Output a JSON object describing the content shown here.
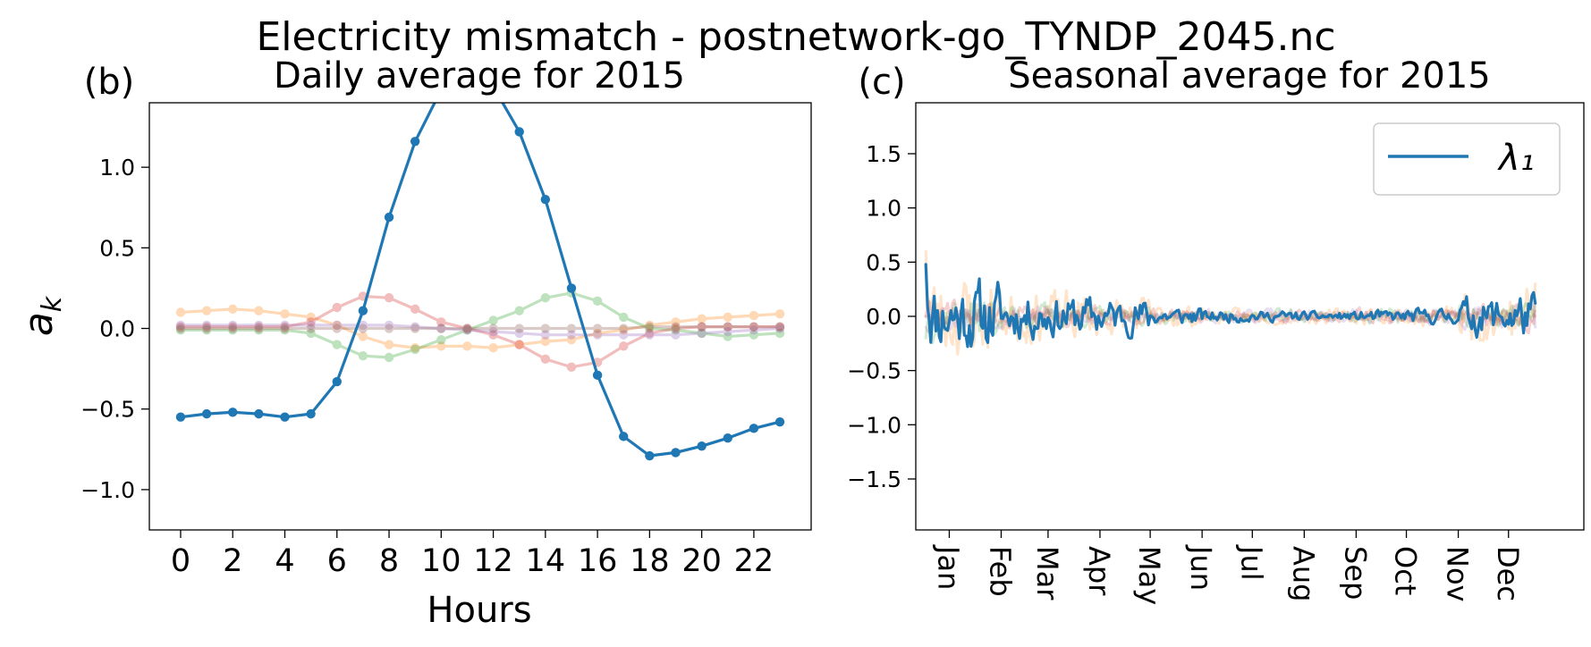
{
  "figure": {
    "suptitle": "Electricity mismatch - postnetwork-go_TYNDP_2045.nc"
  },
  "chart_data": [
    {
      "type": "line",
      "panel_label": "(b)",
      "title": "Daily average for 2015",
      "xlabel": "Hours",
      "ylabel": "a_k",
      "xlim": [
        -1.2,
        24.2
      ],
      "ylim": [
        -1.25,
        1.4
      ],
      "xticks": [
        0,
        2,
        4,
        6,
        8,
        10,
        12,
        14,
        16,
        18,
        20,
        22
      ],
      "xtick_labels": [
        "0",
        "2",
        "4",
        "6",
        "8",
        "10",
        "12",
        "14",
        "16",
        "18",
        "20",
        "22"
      ],
      "yticks": [
        -1.0,
        -0.5,
        0.0,
        0.5,
        1.0
      ],
      "ytick_labels": [
        "−1.0",
        "−0.5",
        "0.0",
        "0.5",
        "1.0"
      ],
      "markers": true,
      "x": [
        0,
        1,
        2,
        3,
        4,
        5,
        6,
        7,
        8,
        9,
        10,
        11,
        12,
        13,
        14,
        15,
        16,
        17,
        18,
        19,
        20,
        21,
        22,
        23
      ],
      "series": [
        {
          "color": "#1f77b4",
          "alpha": 1.0,
          "values": [
            -0.55,
            -0.53,
            -0.52,
            -0.53,
            -0.55,
            -0.53,
            -0.33,
            0.11,
            0.69,
            1.16,
            1.48,
            1.6,
            1.5,
            1.22,
            0.8,
            0.25,
            -0.29,
            -0.67,
            -0.79,
            -0.77,
            -0.73,
            -0.68,
            -0.62,
            -0.58
          ]
        },
        {
          "color": "#ff7f0e",
          "alpha": 0.3,
          "values": [
            0.1,
            0.11,
            0.12,
            0.11,
            0.09,
            0.07,
            0.02,
            -0.05,
            -0.1,
            -0.12,
            -0.11,
            -0.11,
            -0.12,
            -0.1,
            -0.08,
            -0.07,
            -0.03,
            -0.01,
            0.02,
            0.04,
            0.06,
            0.07,
            0.08,
            0.09
          ]
        },
        {
          "color": "#2ca02c",
          "alpha": 0.3,
          "values": [
            -0.01,
            -0.01,
            -0.01,
            -0.01,
            -0.01,
            -0.03,
            -0.1,
            -0.17,
            -0.18,
            -0.13,
            -0.07,
            -0.01,
            0.05,
            0.11,
            0.19,
            0.22,
            0.17,
            0.07,
            0.0,
            -0.01,
            -0.03,
            -0.05,
            -0.04,
            -0.03
          ]
        },
        {
          "color": "#d62728",
          "alpha": 0.3,
          "values": [
            0.01,
            0.01,
            0.01,
            0.01,
            0.01,
            0.04,
            0.13,
            0.2,
            0.19,
            0.12,
            0.04,
            0.0,
            -0.04,
            -0.1,
            -0.19,
            -0.24,
            -0.21,
            -0.11,
            -0.03,
            0.0,
            0.01,
            0.01,
            0.01,
            0.01
          ]
        },
        {
          "color": "#9467bd",
          "alpha": 0.3,
          "values": [
            0.02,
            0.02,
            0.02,
            0.02,
            0.02,
            0.02,
            0.02,
            0.02,
            0.02,
            0.01,
            0.0,
            -0.01,
            -0.02,
            -0.03,
            -0.04,
            -0.04,
            -0.04,
            -0.04,
            -0.04,
            -0.04,
            -0.03,
            -0.02,
            -0.01,
            0.0
          ]
        },
        {
          "color": "#8c564b",
          "alpha": 0.3,
          "values": [
            0.0,
            0.0,
            0.0,
            0.0,
            0.0,
            0.0,
            0.0,
            0.0,
            0.0,
            0.0,
            0.0,
            0.0,
            0.0,
            0.0,
            0.0,
            0.0,
            0.0,
            0.0,
            0.01,
            0.01,
            0.01,
            0.01,
            0.01,
            0.01
          ]
        }
      ]
    },
    {
      "type": "line",
      "panel_label": "(c)",
      "title": "Seasonal average for 2015",
      "xlabel": "",
      "ylabel": "",
      "xlim": [
        -20,
        379
      ],
      "ylim": [
        -1.97,
        1.97
      ],
      "yticks": [
        -1.5,
        -1.0,
        -0.5,
        0.0,
        0.5,
        1.0,
        1.5
      ],
      "ytick_labels": [
        "−1.5",
        "−1.0",
        "−0.5",
        "0.0",
        "0.5",
        "1.0",
        "1.5"
      ],
      "xticks": [
        0,
        31,
        59,
        90,
        120,
        151,
        181,
        212,
        243,
        273,
        304,
        334
      ],
      "xtick_labels": [
        "Jan",
        "Feb",
        "Mar",
        "Apr",
        "May",
        "Jun",
        "Jul",
        "Aug",
        "Sep",
        "Oct",
        "Nov",
        "Dec"
      ],
      "legend": {
        "location": "upper right",
        "entries": [
          {
            "label": "λ₁",
            "color": "#1f77b4"
          }
        ]
      },
      "x_range_days": [
        -14,
        350
      ],
      "series": [
        {
          "color": "#1f77b4",
          "alpha": 1.0,
          "amplitude_by_month": [
            0.48,
            0.3,
            0.28,
            0.24,
            0.12,
            0.08,
            0.07,
            0.06,
            0.08,
            0.1,
            0.26,
            0.32
          ],
          "start": 0.48,
          "end": 0.12,
          "seed": 11
        },
        {
          "color": "#ff7f0e",
          "alpha": 0.22,
          "amplitude_by_month": [
            0.55,
            0.35,
            0.35,
            0.25,
            0.15,
            0.1,
            0.1,
            0.1,
            0.12,
            0.15,
            0.35,
            0.45
          ],
          "start": 0.6,
          "end": 0.3,
          "seed": 23
        },
        {
          "color": "#2ca02c",
          "alpha": 0.22,
          "amplitude_by_month": [
            0.3,
            0.18,
            0.15,
            0.12,
            0.1,
            0.09,
            0.09,
            0.08,
            0.1,
            0.1,
            0.15,
            0.2
          ],
          "start": -0.2,
          "end": 0.1,
          "seed": 37
        },
        {
          "color": "#d62728",
          "alpha": 0.22,
          "amplitude_by_month": [
            0.2,
            0.15,
            0.15,
            0.1,
            0.1,
            0.08,
            0.08,
            0.08,
            0.1,
            0.1,
            0.15,
            0.18
          ],
          "start": 0.0,
          "end": 0.05,
          "seed": 41
        },
        {
          "color": "#9467bd",
          "alpha": 0.22,
          "amplitude_by_month": [
            0.2,
            0.15,
            0.12,
            0.1,
            0.08,
            0.08,
            0.1,
            0.1,
            0.1,
            0.12,
            0.15,
            0.18
          ],
          "start": -0.1,
          "end": -0.1,
          "seed": 53
        },
        {
          "color": "#8c564b",
          "alpha": 0.22,
          "amplitude_by_month": [
            0.12,
            0.1,
            0.08,
            0.07,
            0.06,
            0.05,
            0.05,
            0.05,
            0.06,
            0.07,
            0.1,
            0.12
          ],
          "start": 0.0,
          "end": 0.0,
          "seed": 67
        }
      ]
    }
  ]
}
